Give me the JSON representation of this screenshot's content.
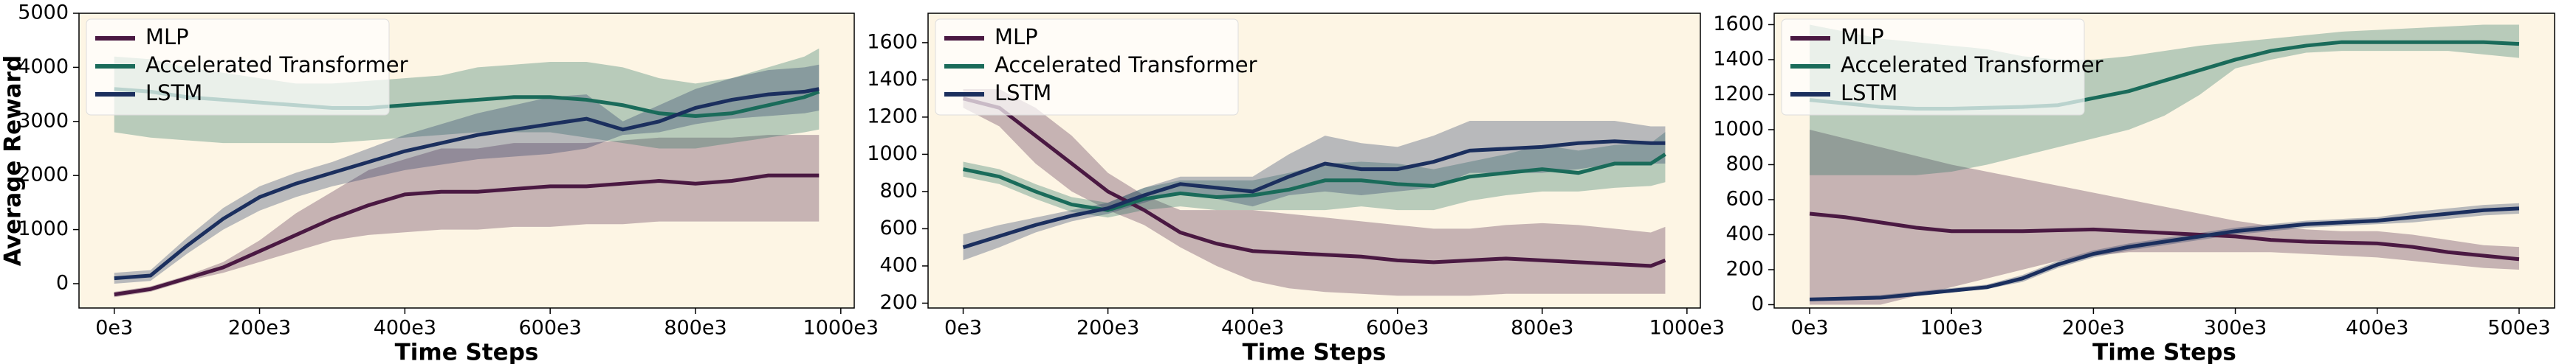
{
  "chart_data": [
    {
      "type": "line",
      "xlabel": "Time Steps",
      "ylabel": "Average Reward",
      "legend": "upper left",
      "x": [
        0,
        50000,
        100000,
        150000,
        200000,
        250000,
        300000,
        350000,
        400000,
        450000,
        500000,
        550000,
        600000,
        650000,
        700000,
        750000,
        800000,
        850000,
        900000,
        950000,
        970000
      ],
      "xlim": [
        -48500,
        1018500
      ],
      "ylim": [
        -450,
        5000
      ],
      "xticks": [
        {
          "value": 0,
          "label": "0e3"
        },
        {
          "value": 200000,
          "label": "200e3"
        },
        {
          "value": 400000,
          "label": "400e3"
        },
        {
          "value": 600000,
          "label": "600e3"
        },
        {
          "value": 800000,
          "label": "800e3"
        },
        {
          "value": 1000000,
          "label": "1000e3"
        }
      ],
      "yticks": [
        0,
        1000,
        2000,
        3000,
        4000,
        5000
      ],
      "series": [
        {
          "name": "MLP",
          "color": "#4a1942",
          "values": [
            -200,
            -100,
            100,
            300,
            600,
            900,
            1200,
            1450,
            1650,
            1700,
            1700,
            1750,
            1800,
            1800,
            1850,
            1900,
            1850,
            1900,
            2000,
            2000,
            2000
          ],
          "lower": [
            -250,
            -150,
            50,
            200,
            400,
            600,
            800,
            900,
            950,
            1000,
            1000,
            1050,
            1050,
            1100,
            1100,
            1150,
            1150,
            1150,
            1150,
            1150,
            1150
          ],
          "upper": [
            -150,
            -50,
            150,
            400,
            800,
            1300,
            1700,
            2100,
            2300,
            2500,
            2500,
            2600,
            2600,
            2600,
            2650,
            2700,
            2700,
            2700,
            2750,
            2750,
            2750
          ]
        },
        {
          "name": "Accelerated Transformer",
          "color": "#1a6b5a",
          "values": [
            3600,
            3550,
            3450,
            3400,
            3350,
            3300,
            3250,
            3250,
            3300,
            3350,
            3400,
            3450,
            3450,
            3400,
            3300,
            3150,
            3100,
            3150,
            3300,
            3450,
            3550
          ],
          "lower": [
            2800,
            2700,
            2650,
            2600,
            2600,
            2600,
            2600,
            2650,
            2700,
            2750,
            2800,
            2800,
            2800,
            2700,
            2600,
            2500,
            2500,
            2600,
            2700,
            2800,
            2850
          ],
          "upper": [
            4200,
            4150,
            4000,
            3900,
            3800,
            3700,
            3700,
            3750,
            3800,
            3850,
            4000,
            4050,
            4100,
            4100,
            4000,
            3800,
            3700,
            3800,
            4000,
            4200,
            4350
          ]
        },
        {
          "name": "LSTM",
          "color": "#1b2f5e",
          "values": [
            100,
            150,
            700,
            1200,
            1600,
            1850,
            2050,
            2250,
            2450,
            2600,
            2750,
            2850,
            2950,
            3050,
            2850,
            3000,
            3250,
            3400,
            3500,
            3550,
            3600
          ],
          "lower": [
            0,
            50,
            550,
            1000,
            1350,
            1600,
            1800,
            1950,
            2100,
            2200,
            2300,
            2350,
            2400,
            2500,
            2750,
            2800,
            2950,
            3050,
            3100,
            3150,
            3200
          ],
          "upper": [
            200,
            250,
            850,
            1400,
            1800,
            2050,
            2250,
            2500,
            2750,
            2950,
            3150,
            3300,
            3450,
            3500,
            3000,
            3300,
            3600,
            3800,
            3950,
            4000,
            4050
          ]
        }
      ]
    },
    {
      "type": "line",
      "xlabel": "Time Steps",
      "legend": "upper left",
      "x": [
        0,
        50000,
        100000,
        150000,
        200000,
        250000,
        300000,
        350000,
        400000,
        450000,
        500000,
        550000,
        600000,
        650000,
        700000,
        750000,
        800000,
        850000,
        900000,
        950000,
        970000
      ],
      "xlim": [
        -48500,
        1018500
      ],
      "ylim": [
        174,
        1758
      ],
      "xticks": [
        {
          "value": 0,
          "label": "0e3"
        },
        {
          "value": 200000,
          "label": "200e3"
        },
        {
          "value": 400000,
          "label": "400e3"
        },
        {
          "value": 600000,
          "label": "600e3"
        },
        {
          "value": 800000,
          "label": "800e3"
        },
        {
          "value": 1000000,
          "label": "1000e3"
        }
      ],
      "yticks": [
        200,
        400,
        600,
        800,
        1000,
        1200,
        1400,
        1600
      ],
      "series": [
        {
          "name": "MLP",
          "color": "#4a1942",
          "values": [
            1300,
            1250,
            1100,
            950,
            800,
            700,
            580,
            520,
            480,
            470,
            460,
            450,
            430,
            420,
            430,
            440,
            430,
            420,
            410,
            400,
            430
          ],
          "lower": [
            1250,
            1150,
            950,
            800,
            700,
            620,
            500,
            400,
            320,
            280,
            260,
            250,
            240,
            240,
            240,
            250,
            250,
            250,
            250,
            250,
            250
          ],
          "upper": [
            1350,
            1350,
            1250,
            1100,
            900,
            780,
            700,
            700,
            700,
            680,
            660,
            640,
            620,
            600,
            600,
            620,
            630,
            620,
            600,
            580,
            610
          ]
        },
        {
          "name": "Accelerated Transformer",
          "color": "#1a6b5a",
          "values": [
            920,
            880,
            800,
            730,
            700,
            760,
            790,
            770,
            780,
            810,
            860,
            860,
            840,
            830,
            880,
            900,
            920,
            900,
            950,
            950,
            1000
          ],
          "lower": [
            880,
            840,
            760,
            690,
            660,
            700,
            720,
            700,
            700,
            700,
            700,
            720,
            700,
            700,
            750,
            780,
            800,
            800,
            820,
            830,
            850
          ],
          "upper": [
            960,
            920,
            840,
            770,
            740,
            820,
            860,
            860,
            860,
            900,
            950,
            960,
            950,
            920,
            960,
            1000,
            1050,
            1020,
            1050,
            1060,
            1120
          ]
        },
        {
          "name": "LSTM",
          "color": "#1b2f5e",
          "values": [
            500,
            560,
            620,
            670,
            710,
            780,
            840,
            820,
            800,
            880,
            950,
            920,
            920,
            960,
            1020,
            1030,
            1040,
            1060,
            1070,
            1060,
            1060
          ],
          "lower": [
            430,
            500,
            580,
            640,
            680,
            740,
            800,
            760,
            720,
            780,
            800,
            780,
            800,
            820,
            900,
            900,
            900,
            920,
            950,
            950,
            950
          ],
          "upper": [
            570,
            620,
            660,
            700,
            740,
            820,
            880,
            880,
            880,
            1000,
            1100,
            1060,
            1040,
            1100,
            1180,
            1180,
            1180,
            1180,
            1180,
            1150,
            1150
          ]
        }
      ]
    },
    {
      "type": "line",
      "xlabel": "Time Steps",
      "legend": "upper left",
      "x": [
        0,
        25000,
        50000,
        75000,
        100000,
        125000,
        150000,
        175000,
        200000,
        225000,
        250000,
        275000,
        300000,
        325000,
        350000,
        375000,
        400000,
        425000,
        450000,
        475000,
        500000
      ],
      "xlim": [
        -25000,
        525000
      ],
      "ylim": [
        -19,
        1665
      ],
      "xticks": [
        {
          "value": 0,
          "label": "0e3"
        },
        {
          "value": 100000,
          "label": "100e3"
        },
        {
          "value": 200000,
          "label": "200e3"
        },
        {
          "value": 300000,
          "label": "300e3"
        },
        {
          "value": 400000,
          "label": "400e3"
        },
        {
          "value": 500000,
          "label": "500e3"
        }
      ],
      "yticks": [
        0,
        200,
        400,
        600,
        800,
        1000,
        1200,
        1400,
        1600
      ],
      "series": [
        {
          "name": "MLP",
          "color": "#4a1942",
          "values": [
            520,
            500,
            470,
            440,
            420,
            420,
            420,
            425,
            430,
            420,
            410,
            400,
            390,
            370,
            360,
            355,
            350,
            330,
            300,
            280,
            260
          ],
          "lower": [
            0,
            0,
            0,
            50,
            100,
            150,
            200,
            250,
            280,
            300,
            300,
            300,
            300,
            300,
            290,
            280,
            270,
            250,
            230,
            210,
            200
          ],
          "upper": [
            1000,
            950,
            900,
            850,
            800,
            760,
            720,
            680,
            640,
            600,
            560,
            520,
            480,
            450,
            430,
            420,
            420,
            400,
            370,
            340,
            330
          ]
        },
        {
          "name": "Accelerated Transformer",
          "color": "#1a6b5a",
          "values": [
            1170,
            1150,
            1130,
            1120,
            1120,
            1125,
            1130,
            1140,
            1180,
            1220,
            1280,
            1340,
            1400,
            1450,
            1480,
            1500,
            1500,
            1500,
            1500,
            1500,
            1490
          ],
          "lower": [
            740,
            740,
            740,
            740,
            760,
            800,
            850,
            900,
            950,
            1000,
            1080,
            1200,
            1350,
            1400,
            1440,
            1450,
            1450,
            1450,
            1450,
            1430,
            1410
          ],
          "upper": [
            1600,
            1560,
            1520,
            1500,
            1480,
            1460,
            1420,
            1400,
            1400,
            1420,
            1450,
            1480,
            1500,
            1520,
            1540,
            1560,
            1570,
            1580,
            1590,
            1600,
            1600
          ]
        },
        {
          "name": "LSTM",
          "color": "#1b2f5e",
          "values": [
            30,
            35,
            40,
            60,
            80,
            100,
            150,
            230,
            290,
            330,
            360,
            390,
            420,
            440,
            460,
            470,
            480,
            500,
            520,
            540,
            550
          ],
          "lower": [
            20,
            25,
            30,
            50,
            70,
            90,
            130,
            210,
            270,
            310,
            340,
            370,
            400,
            420,
            440,
            450,
            460,
            470,
            490,
            510,
            520
          ],
          "upper": [
            40,
            45,
            55,
            75,
            95,
            115,
            170,
            250,
            310,
            350,
            380,
            410,
            440,
            460,
            480,
            490,
            500,
            530,
            550,
            570,
            580
          ]
        }
      ]
    }
  ]
}
